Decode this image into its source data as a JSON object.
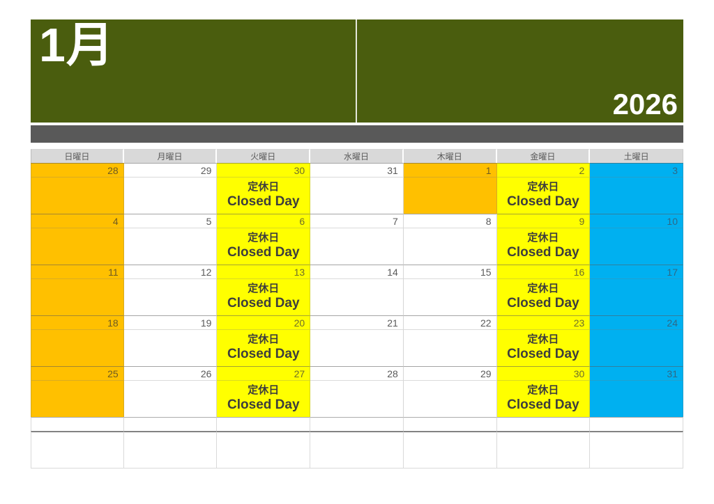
{
  "header": {
    "month_label": "1月",
    "year_label": "2026"
  },
  "colors": {
    "header_green": "#4A5D0E",
    "bar_gray": "#595959",
    "day_header_bg": "#D9D9D9",
    "day_header_text": "#595959",
    "orange": "#FFC000",
    "yellow": "#FFFF00",
    "blue": "#00B0F0",
    "white": "#FFFFFF",
    "closed_text": "#3D3D3D",
    "date_text": {
      "white": "#595959",
      "orange": "#6E5A22",
      "yellow": "#6E6E2A",
      "blue": "#2F6886"
    }
  },
  "calendar": {
    "day_headers": [
      "日曜日",
      "月曜日",
      "火曜日",
      "水曜日",
      "木曜日",
      "金曜日",
      "土曜日"
    ],
    "closed_label_ja": "定休日",
    "closed_label_en": "Closed Day",
    "weeks": [
      {
        "days": [
          {
            "date": "28",
            "bg": "orange",
            "closed": false
          },
          {
            "date": "29",
            "bg": "white",
            "closed": false
          },
          {
            "date": "30",
            "bg": "yellow",
            "closed": true
          },
          {
            "date": "31",
            "bg": "white",
            "closed": false
          },
          {
            "date": "1",
            "bg": "orange",
            "closed": false
          },
          {
            "date": "2",
            "bg": "yellow",
            "closed": true
          },
          {
            "date": "3",
            "bg": "blue",
            "closed": false
          }
        ]
      },
      {
        "days": [
          {
            "date": "4",
            "bg": "orange",
            "closed": false
          },
          {
            "date": "5",
            "bg": "white",
            "closed": false
          },
          {
            "date": "6",
            "bg": "yellow",
            "closed": true
          },
          {
            "date": "7",
            "bg": "white",
            "closed": false
          },
          {
            "date": "8",
            "bg": "white",
            "closed": false
          },
          {
            "date": "9",
            "bg": "yellow",
            "closed": true
          },
          {
            "date": "10",
            "bg": "blue",
            "closed": false
          }
        ]
      },
      {
        "days": [
          {
            "date": "11",
            "bg": "orange",
            "closed": false
          },
          {
            "date": "12",
            "bg": "white",
            "closed": false
          },
          {
            "date": "13",
            "bg": "yellow",
            "closed": true
          },
          {
            "date": "14",
            "bg": "white",
            "closed": false
          },
          {
            "date": "15",
            "bg": "white",
            "closed": false
          },
          {
            "date": "16",
            "bg": "yellow",
            "closed": true
          },
          {
            "date": "17",
            "bg": "blue",
            "closed": false
          }
        ]
      },
      {
        "days": [
          {
            "date": "18",
            "bg": "orange",
            "closed": false
          },
          {
            "date": "19",
            "bg": "white",
            "closed": false
          },
          {
            "date": "20",
            "bg": "yellow",
            "closed": true
          },
          {
            "date": "21",
            "bg": "white",
            "closed": false
          },
          {
            "date": "22",
            "bg": "white",
            "closed": false
          },
          {
            "date": "23",
            "bg": "yellow",
            "closed": true
          },
          {
            "date": "24",
            "bg": "blue",
            "closed": false
          }
        ]
      },
      {
        "days": [
          {
            "date": "25",
            "bg": "orange",
            "closed": false
          },
          {
            "date": "26",
            "bg": "white",
            "closed": false
          },
          {
            "date": "27",
            "bg": "yellow",
            "closed": true
          },
          {
            "date": "28",
            "bg": "white",
            "closed": false
          },
          {
            "date": "29",
            "bg": "white",
            "closed": false
          },
          {
            "date": "30",
            "bg": "yellow",
            "closed": true
          },
          {
            "date": "31",
            "bg": "blue",
            "closed": false
          }
        ]
      }
    ]
  }
}
